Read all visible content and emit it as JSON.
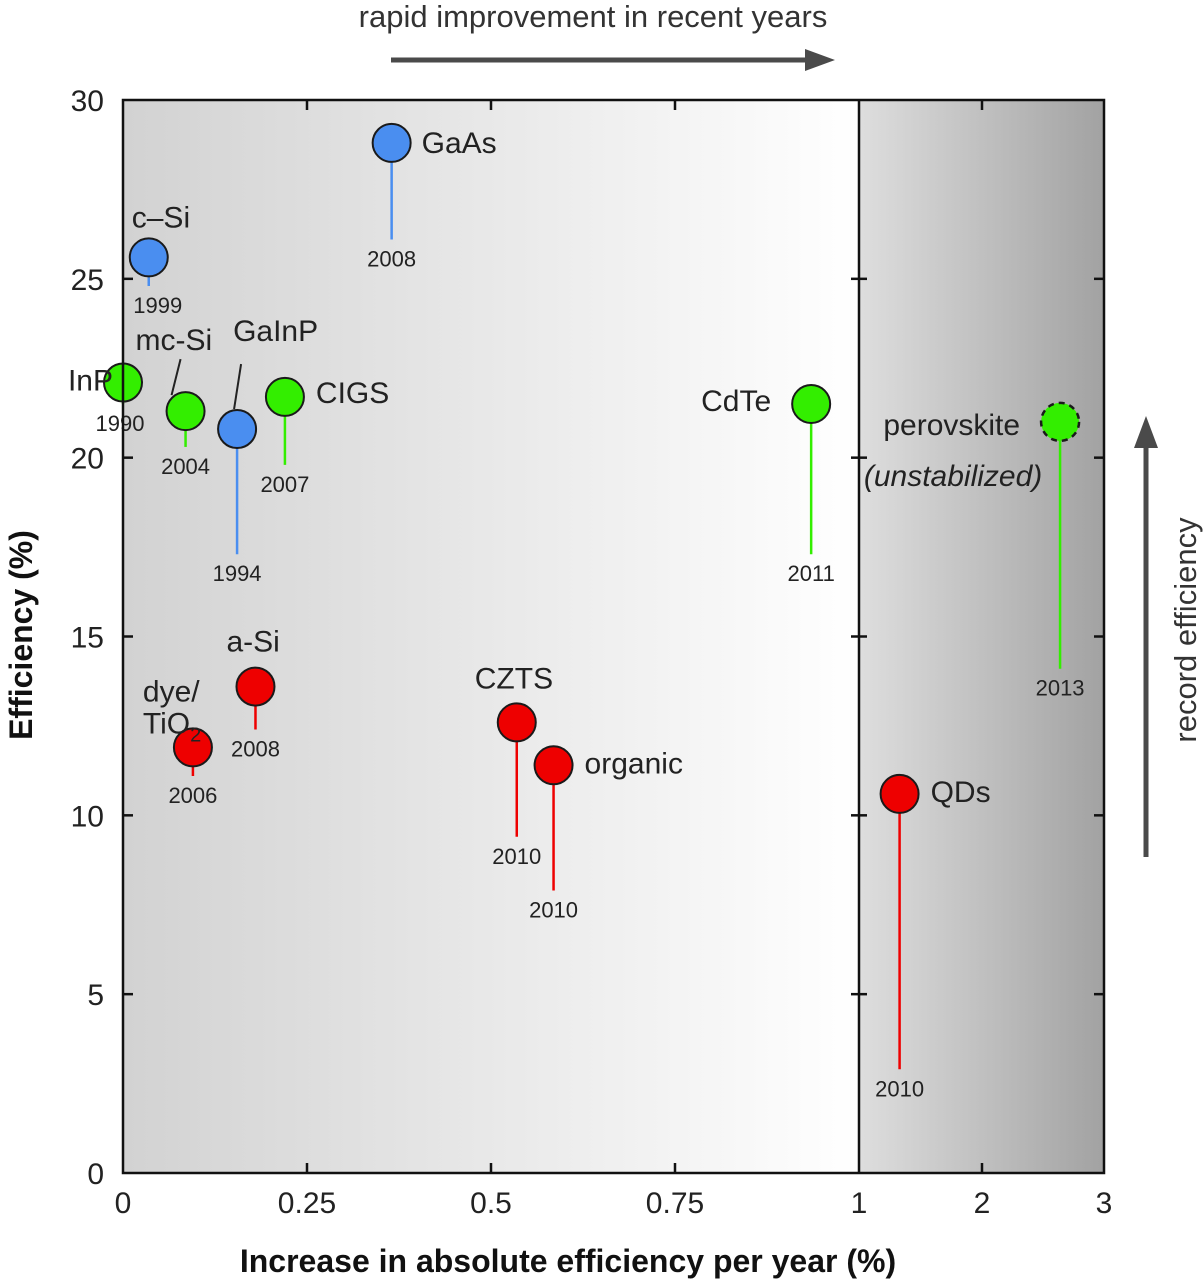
{
  "chart_data": {
    "type": "scatter",
    "title": "",
    "xlabel": "Increase in absolute efficiency per year (%)",
    "ylabel": "Efficiency (%)",
    "ylim": [
      0,
      30
    ],
    "x_segments": [
      {
        "range": [
          0,
          1
        ],
        "ticks": [
          0,
          0.25,
          0.5,
          0.75,
          1
        ],
        "tick_labels": [
          "0",
          "0.25",
          "0.5",
          "0.75",
          "1"
        ]
      },
      {
        "range": [
          1,
          3
        ],
        "ticks": [
          2,
          3
        ],
        "tick_labels": [
          "2",
          "3"
        ]
      }
    ],
    "y_ticks": [
      0,
      5,
      10,
      15,
      20,
      25,
      30
    ],
    "y_tick_labels": [
      "0",
      "5",
      "10",
      "15",
      "20",
      "25",
      "30"
    ],
    "category_colors": {
      "blue": "#4a8ef0",
      "green": "#33ee00",
      "red": "#ee0000"
    },
    "points": [
      {
        "name": "GaAs",
        "x": 0.365,
        "y": 28.8,
        "start_y": 26.1,
        "year": "2008",
        "color": "#4a8ef0",
        "label_pos": "right"
      },
      {
        "name": "c–Si",
        "x": 0.035,
        "y": 25.6,
        "start_y": 24.8,
        "year": "1999",
        "color": "#4a8ef0",
        "label_pos": "top"
      },
      {
        "name": "GaInP",
        "x": 0.155,
        "y": 20.8,
        "start_y": 17.3,
        "year": "1994",
        "color": "#4a8ef0",
        "label_pos": "leader"
      },
      {
        "name": "InP",
        "x": 0.0,
        "y": 22.1,
        "start_y": 21.5,
        "year": "1990",
        "color": "#33ee00",
        "label_pos": "left"
      },
      {
        "name": "mc-Si",
        "x": 0.085,
        "y": 21.3,
        "start_y": 20.3,
        "year": "2004",
        "color": "#33ee00",
        "label_pos": "leader"
      },
      {
        "name": "CIGS",
        "x": 0.22,
        "y": 21.7,
        "start_y": 19.8,
        "year": "2007",
        "color": "#33ee00",
        "label_pos": "right"
      },
      {
        "name": "CdTe",
        "x": 0.935,
        "y": 21.5,
        "start_y": 17.3,
        "year": "2011",
        "color": "#33ee00",
        "label_pos": "left"
      },
      {
        "name": "perovskite",
        "x": 2.64,
        "y": 21.0,
        "start_y": 14.1,
        "year": "2013",
        "color": "#33ee00",
        "label_pos": "left",
        "dashed": true,
        "note": "(unstabilized)"
      },
      {
        "name": "dye/TiO",
        "subscript": "2",
        "x": 0.095,
        "y": 11.9,
        "start_y": 11.1,
        "year": "2006",
        "color": "#ee0000",
        "label_pos": "top-left"
      },
      {
        "name": "a-Si",
        "x": 0.18,
        "y": 13.6,
        "start_y": 12.4,
        "year": "2008",
        "color": "#ee0000",
        "label_pos": "top"
      },
      {
        "name": "CZTS",
        "x": 0.535,
        "y": 12.6,
        "start_y": 9.4,
        "year": "2010",
        "color": "#ee0000",
        "label_pos": "top"
      },
      {
        "name": "organic",
        "x": 0.585,
        "y": 11.4,
        "start_y": 7.9,
        "year": "2010",
        "color": "#ee0000",
        "label_pos": "right"
      },
      {
        "name": "QDs",
        "x": 1.33,
        "y": 10.6,
        "start_y": 2.9,
        "year": "2010",
        "color": "#ee0000",
        "label_pos": "right"
      }
    ],
    "annotations": {
      "top": "rapid improvement in recent years",
      "right": "record efficiency"
    }
  }
}
